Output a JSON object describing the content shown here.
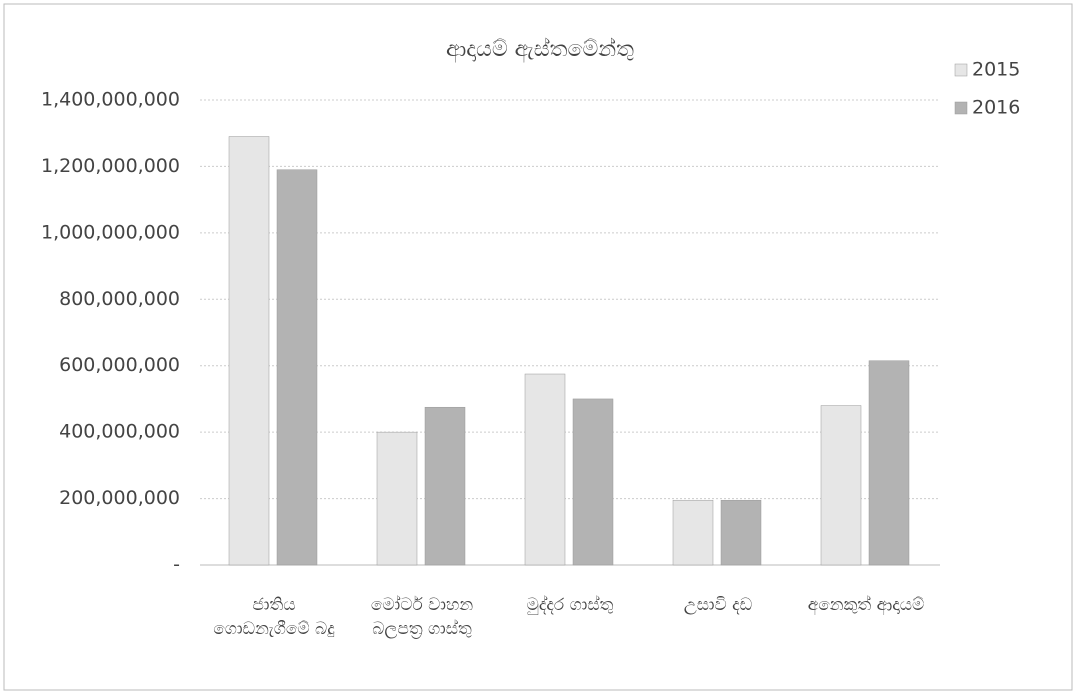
{
  "chart_data": {
    "type": "bar",
    "title": "ආදායම් ඇස්තමේන්තු",
    "categories": [
      "ජාතිය ගොඩනැගීමේ බදු",
      "මෝටර් වාහන බලපත්‍ර ගාස්තු",
      "මුද්දර ගාස්තු",
      "උසාවි දඩ",
      "අනෙකුත් ආදායම්"
    ],
    "series": [
      {
        "name": "2015",
        "color": "#e6e6e6",
        "values": [
          1290000000,
          400000000,
          575000000,
          195000000,
          480000000
        ]
      },
      {
        "name": "2016",
        "color": "#b3b3b3",
        "values": [
          1190000000,
          475000000,
          500000000,
          195000000,
          615000000
        ]
      }
    ],
    "ylim": [
      0,
      1400000000
    ],
    "yticks": [
      {
        "value": 0,
        "label": "-"
      },
      {
        "value": 200000000,
        "label": "200,000,000"
      },
      {
        "value": 400000000,
        "label": "400,000,000"
      },
      {
        "value": 600000000,
        "label": "600,000,000"
      },
      {
        "value": 800000000,
        "label": "800,000,000"
      },
      {
        "value": 1000000000,
        "label": "1,000,000,000"
      },
      {
        "value": 1200000000,
        "label": "1,200,000,000"
      },
      {
        "value": 1400000000,
        "label": "1,400,000,000"
      }
    ],
    "grid": true,
    "legend": "right"
  }
}
